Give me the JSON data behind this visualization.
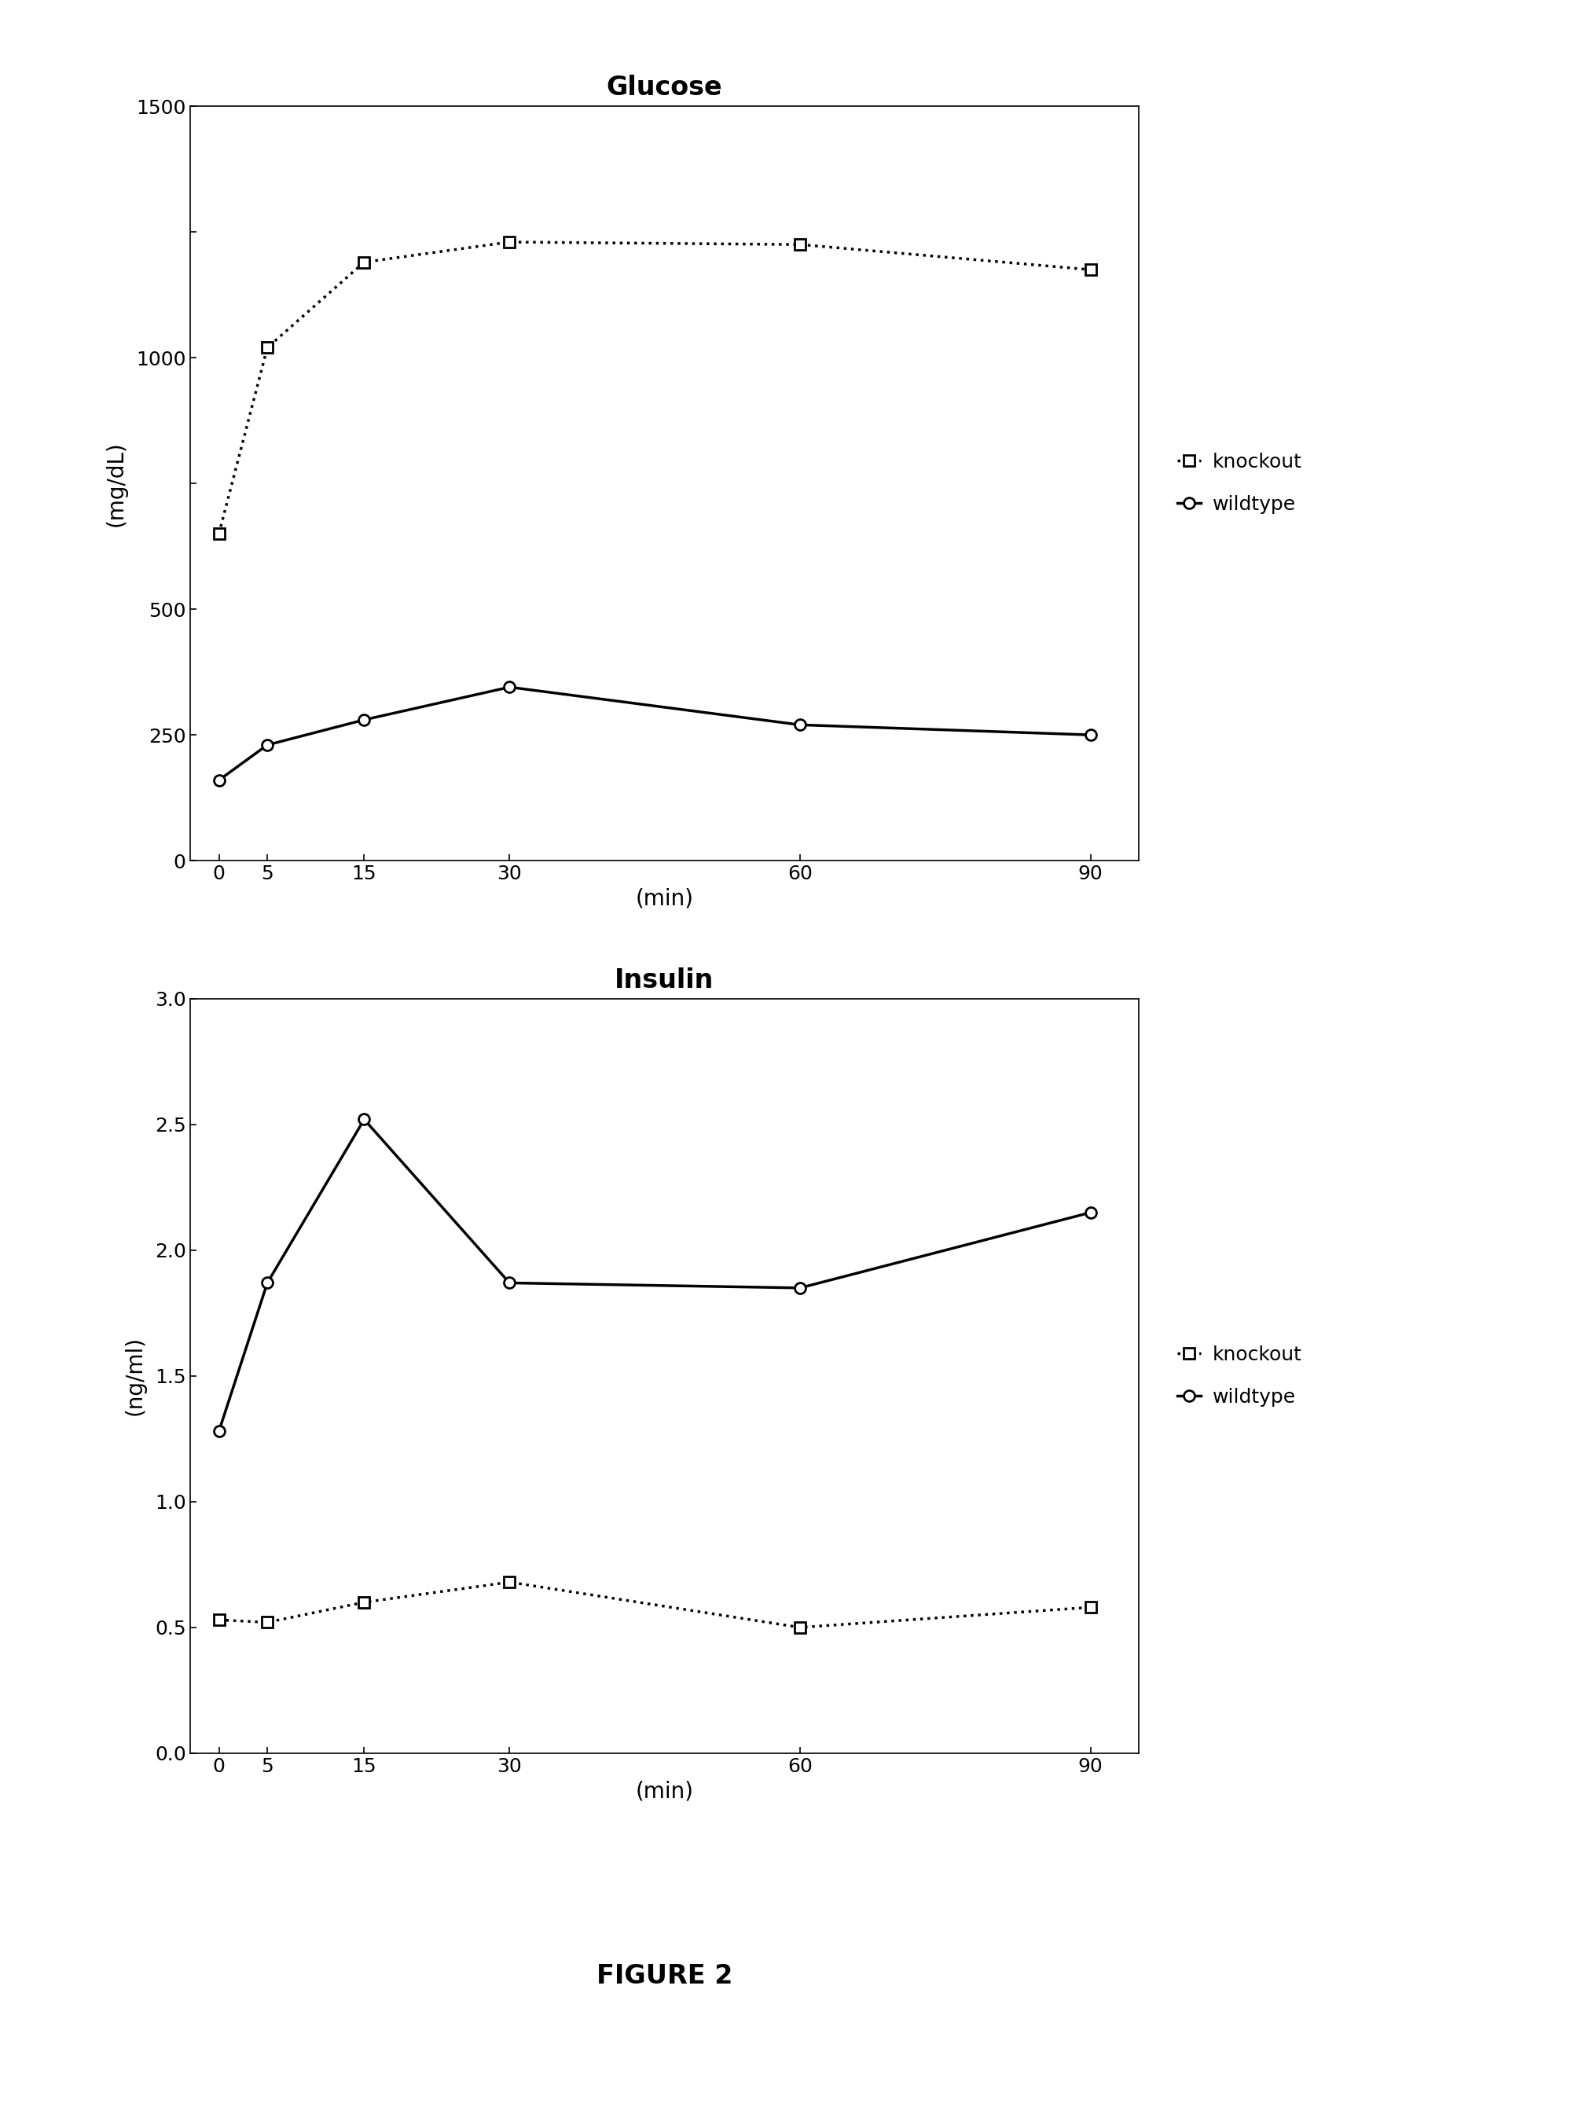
{
  "glucose": {
    "title": "Glucose",
    "xlabel": "(min)",
    "ylabel": "(mg/dL)",
    "x": [
      0,
      5,
      15,
      30,
      60,
      90
    ],
    "knockout_y": [
      650,
      1020,
      1190,
      1230,
      1225,
      1175
    ],
    "wildtype_y": [
      160,
      230,
      280,
      345,
      270,
      250
    ],
    "ylim": [
      0,
      1500
    ],
    "yticks": [
      0,
      250,
      500,
      750,
      1000,
      1250,
      1500
    ],
    "ytick_labels": [
      "0",
      "250",
      "500",
      "",
      "1000",
      "",
      "1500"
    ],
    "xticks": [
      0,
      5,
      15,
      30,
      60,
      90
    ]
  },
  "insulin": {
    "title": "Insulin",
    "xlabel": "(min)",
    "ylabel": "(ng/ml)",
    "x": [
      0,
      5,
      15,
      30,
      60,
      90
    ],
    "knockout_y": [
      0.53,
      0.52,
      0.6,
      0.68,
      0.5,
      0.58
    ],
    "wildtype_y": [
      1.28,
      1.87,
      2.52,
      1.87,
      1.85,
      2.15
    ],
    "ylim": [
      0.0,
      3.0
    ],
    "yticks": [
      0.0,
      0.5,
      1.0,
      1.5,
      2.0,
      2.5,
      3.0
    ],
    "ytick_labels": [
      "0.0",
      "0.5",
      "1.0",
      "1.5",
      "2.0",
      "2.5",
      "3.0"
    ],
    "xticks": [
      0,
      5,
      15,
      30,
      60,
      90
    ]
  },
  "figure_label": "FIGURE 2",
  "background_color": "#ffffff",
  "title_fontsize": 24,
  "label_fontsize": 20,
  "tick_fontsize": 18,
  "legend_fontsize": 18,
  "figure_label_fontsize": 24
}
